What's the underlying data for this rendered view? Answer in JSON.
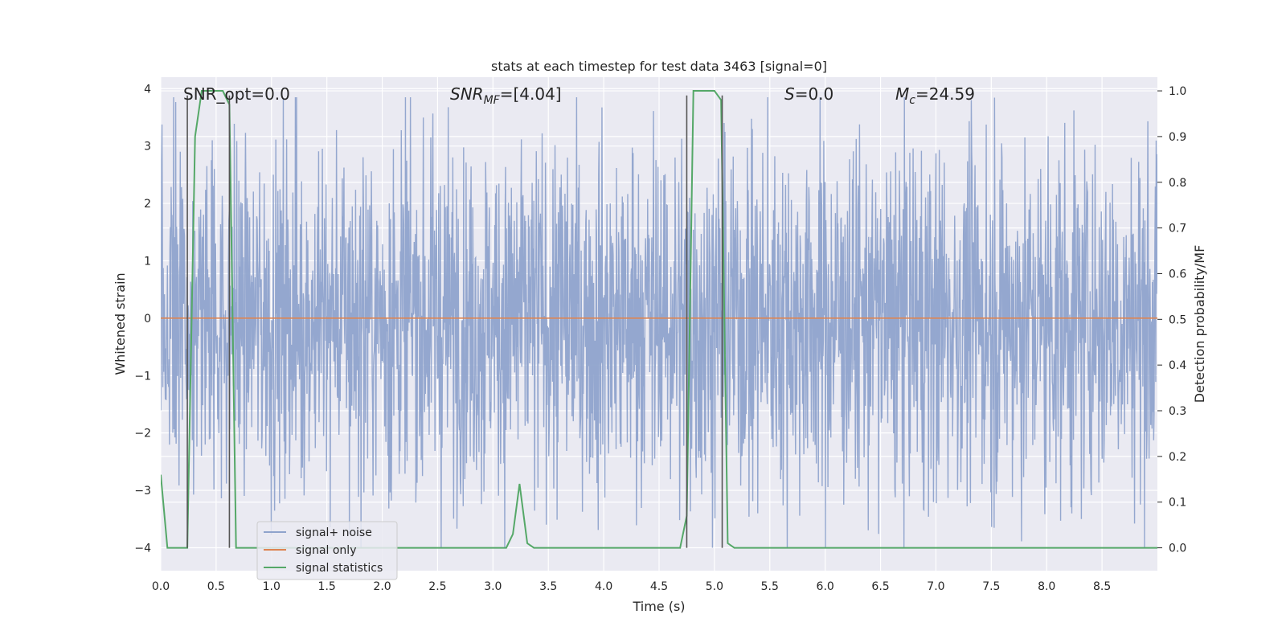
{
  "chart_data": {
    "type": "line",
    "title": "stats at each timestep for test data 3463 [signal=0]",
    "xlabel": "Time (s)",
    "ylabel": "Whitened strain",
    "y2label": "Detection probability/MF",
    "xlim": [
      0,
      9.0
    ],
    "ylim": [
      -4.4,
      4.2
    ],
    "y2lim": [
      -0.05,
      1.03
    ],
    "xticks": [
      "0.0",
      "0.5",
      "1.0",
      "1.5",
      "2.0",
      "2.5",
      "3.0",
      "3.5",
      "4.0",
      "4.5",
      "5.0",
      "5.5",
      "6.0",
      "6.5",
      "7.0",
      "7.5",
      "8.0",
      "8.5"
    ],
    "yticks": [
      "−4",
      "−3",
      "−2",
      "−1",
      "0",
      "1",
      "2",
      "3",
      "4"
    ],
    "y2ticks": [
      "0.0",
      "0.1",
      "0.2",
      "0.3",
      "0.4",
      "0.5",
      "0.6",
      "0.7",
      "0.8",
      "0.9",
      "1.0"
    ],
    "grid": true,
    "legend_position": "lower-left",
    "annotations": {
      "snr_opt": "SNR_opt=0.0",
      "snr_mf_main": "SNR",
      "snr_mf_sub": "MF",
      "snr_mf_val": "=[4.04]",
      "s_main": "S",
      "s_val": "=0.0",
      "mc_main": "M",
      "mc_sub": "c",
      "mc_val": "=24.59"
    },
    "series": [
      {
        "name": "signal+ noise",
        "color": "#8fa3cc",
        "noise_envelope": {
          "typical_amplitude": 1.9,
          "peak_max": 3.85,
          "peak_min": -4.0
        }
      },
      {
        "name": "signal only",
        "color": "#dd8452",
        "x": [
          0.0,
          9.0
        ],
        "y": [
          0.0,
          0.0
        ]
      },
      {
        "name": "signal statistics",
        "color": "#55a868",
        "x": [
          0.0,
          0.06,
          0.12,
          0.18,
          0.24,
          0.31,
          0.37,
          0.43,
          0.5,
          0.56,
          0.62,
          0.68,
          0.75,
          0.81,
          0.87,
          0.93,
          3.12,
          3.18,
          3.24,
          3.31,
          3.37,
          4.69,
          4.75,
          4.81,
          4.87,
          4.93,
          5.0,
          5.06,
          5.12,
          5.18,
          5.25,
          9.0
        ],
        "y": [
          0.16,
          0.0,
          0.0,
          0.0,
          0.0,
          0.9,
          1.0,
          1.0,
          1.0,
          1.0,
          0.97,
          0.0,
          0.0,
          0.0,
          0.0,
          0.0,
          0.0,
          0.03,
          0.14,
          0.01,
          0.0,
          0.0,
          0.07,
          1.0,
          1.0,
          1.0,
          1.0,
          0.98,
          0.01,
          0.0,
          0.0,
          0.0
        ]
      }
    ],
    "vertical_markers": [
      {
        "x": 0.24,
        "y2_top": 0.99
      },
      {
        "x": 0.62,
        "y2_top": 0.99
      },
      {
        "x": 4.75,
        "y2_top": 0.99
      },
      {
        "x": 5.07,
        "y2_top": 0.99
      }
    ]
  }
}
